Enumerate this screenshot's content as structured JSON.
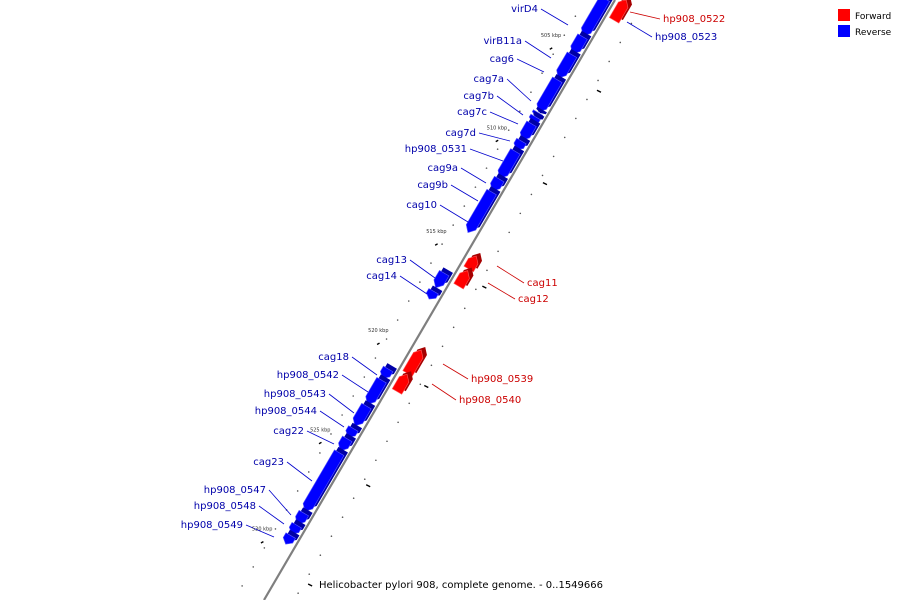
{
  "caption": "Helicobacter pylori 908, complete genome. - 0..1549666",
  "legend": [
    {
      "label": "Forward",
      "color": "#ff0000"
    },
    {
      "label": "Reverse",
      "color": "#0000ff"
    }
  ],
  "kbp_labels": [
    "505 kbp",
    "510 kbp",
    "515 kbp",
    "520 kbp",
    "525 kbp",
    "530 kbp"
  ],
  "genes": [
    {
      "name": "hp908_0522",
      "strand": "forward"
    },
    {
      "name": "hp908_0523",
      "strand": "reverse"
    },
    {
      "name": "virD4",
      "strand": "reverse"
    },
    {
      "name": "virB11a",
      "strand": "reverse"
    },
    {
      "name": "cag6",
      "strand": "reverse"
    },
    {
      "name": "cag7a",
      "strand": "reverse"
    },
    {
      "name": "cag7b",
      "strand": "reverse"
    },
    {
      "name": "cag7c",
      "strand": "reverse"
    },
    {
      "name": "cag7d",
      "strand": "reverse"
    },
    {
      "name": "hp908_0531",
      "strand": "reverse"
    },
    {
      "name": "cag9a",
      "strand": "reverse"
    },
    {
      "name": "cag9b",
      "strand": "reverse"
    },
    {
      "name": "cag10",
      "strand": "reverse"
    },
    {
      "name": "cag11",
      "strand": "forward"
    },
    {
      "name": "cag12",
      "strand": "forward"
    },
    {
      "name": "cag13",
      "strand": "reverse"
    },
    {
      "name": "cag14",
      "strand": "reverse"
    },
    {
      "name": "hp908_0539",
      "strand": "forward"
    },
    {
      "name": "hp908_0540",
      "strand": "forward"
    },
    {
      "name": "cag18",
      "strand": "reverse"
    },
    {
      "name": "hp908_0542",
      "strand": "reverse"
    },
    {
      "name": "hp908_0543",
      "strand": "reverse"
    },
    {
      "name": "hp908_0544",
      "strand": "reverse"
    },
    {
      "name": "cag22",
      "strand": "reverse"
    },
    {
      "name": "cag23",
      "strand": "reverse"
    },
    {
      "name": "hp908_0547",
      "strand": "reverse"
    },
    {
      "name": "hp908_0548",
      "strand": "reverse"
    },
    {
      "name": "hp908_0549",
      "strand": "reverse"
    }
  ]
}
